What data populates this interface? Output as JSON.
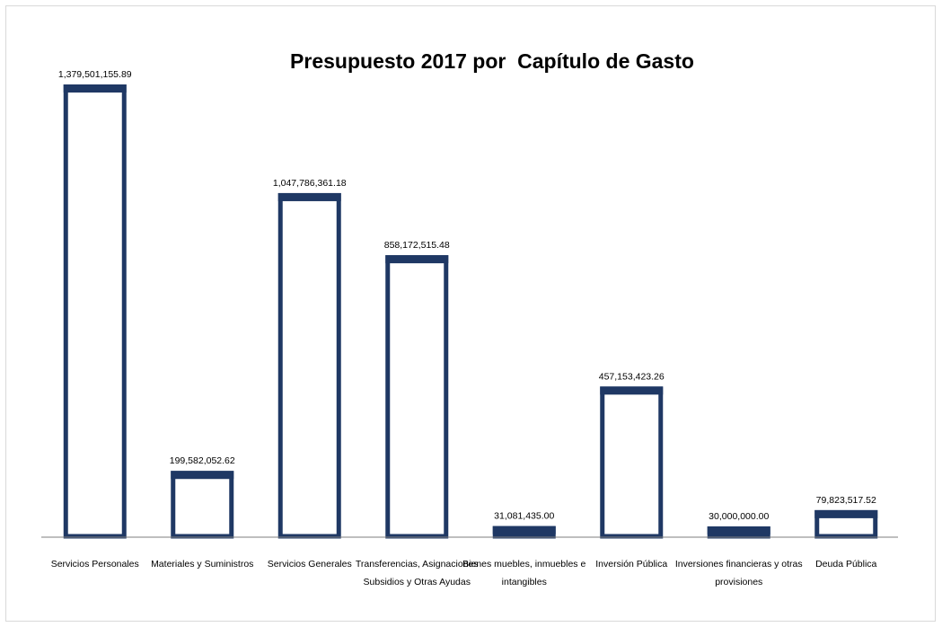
{
  "chart_data": {
    "type": "bar",
    "title": "Presupuesto 2017 por  Capítulo de Gasto",
    "categories": [
      "Servicios Personales",
      "Materiales y Suministros",
      "Servicios Generales",
      "Transferencias, Asignaciones Subsidios y Otras Ayudas",
      "Bienes muebles, inmuebles e intangibles",
      "Inversión Pública",
      "Inversiones financieras y otras provisiones",
      "Deuda Pública"
    ],
    "category_lines": [
      [
        "Servicios Personales"
      ],
      [
        "Materiales y Suministros"
      ],
      [
        "Servicios Generales"
      ],
      [
        "Transferencias, Asignaciones",
        "Subsidios y Otras Ayudas"
      ],
      [
        "Bienes muebles, inmuebles e",
        "intangibles"
      ],
      [
        "Inversión Pública"
      ],
      [
        "Inversiones financieras y otras",
        "provisiones"
      ],
      [
        "Deuda Pública"
      ]
    ],
    "values": [
      1379501155.89,
      199582052.62,
      1047786361.18,
      858172515.48,
      31081435.0,
      457153423.26,
      30000000.0,
      79823517.52
    ],
    "value_labels": [
      "1,379,501,155.89",
      "199,582,052.62",
      "1,047,786,361.18",
      "858,172,515.48",
      "31,081,435.00",
      "457,153,423.26",
      "30,000,000.00",
      "79,823,517.52"
    ],
    "xlabel": "",
    "ylabel": "",
    "ylim": [
      0,
      1379501155.89
    ],
    "grid": false,
    "legend": "none",
    "colors": {
      "bar_border": "#1f3864",
      "bar_fill": "#ffffff",
      "axis": "#7f7f7f"
    }
  }
}
